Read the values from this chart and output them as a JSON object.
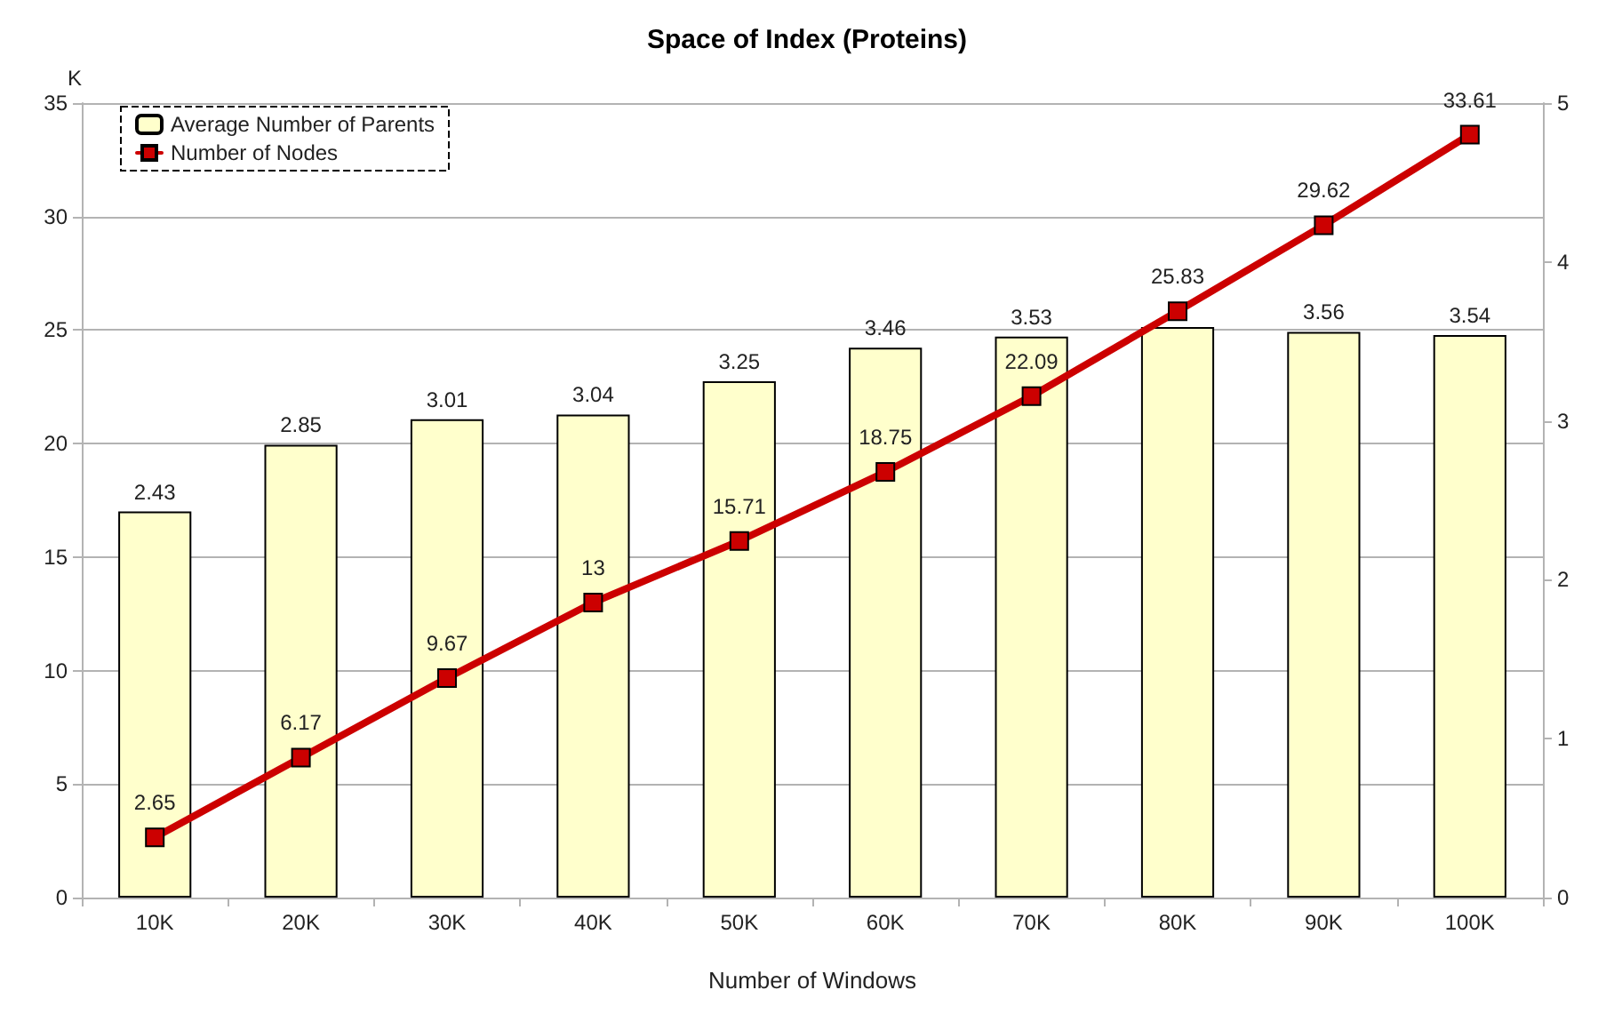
{
  "chart_data": {
    "type": "bar",
    "title": "Space of Index (Proteins)",
    "xlabel": "Number of Windows",
    "ylabel": "K",
    "categories": [
      "10K",
      "20K",
      "30K",
      "40K",
      "50K",
      "60K",
      "70K",
      "80K",
      "90K",
      "100K"
    ],
    "series": [
      {
        "name": "Average Number of Parents",
        "axis": "y2",
        "color": "#ffffcc",
        "values": [
          2.43,
          2.85,
          3.01,
          3.04,
          3.25,
          3.46,
          3.53,
          3.59,
          3.56,
          3.54
        ],
        "value_labels": [
          "2.43",
          "2.85",
          "3.01",
          "3.04",
          "3.25",
          "3.46",
          "3.53",
          null,
          "3.56",
          "3.54"
        ]
      },
      {
        "name": "Number of Nodes",
        "type": "line",
        "color": "#cc0000",
        "values": [
          2.65,
          6.17,
          9.67,
          13,
          15.71,
          18.75,
          22.09,
          25.83,
          29.62,
          33.61
        ]
      }
    ],
    "ylim": [
      0,
      35
    ],
    "yticks": [
      0,
      5,
      10,
      15,
      20,
      25,
      30,
      35
    ],
    "y2lim": [
      0,
      5
    ],
    "y2ticks": [
      0,
      1,
      2,
      3,
      4,
      5
    ],
    "grid": "y",
    "legend": "top left",
    "marker": "square",
    "line_style": "solid",
    "data_labels": true
  }
}
